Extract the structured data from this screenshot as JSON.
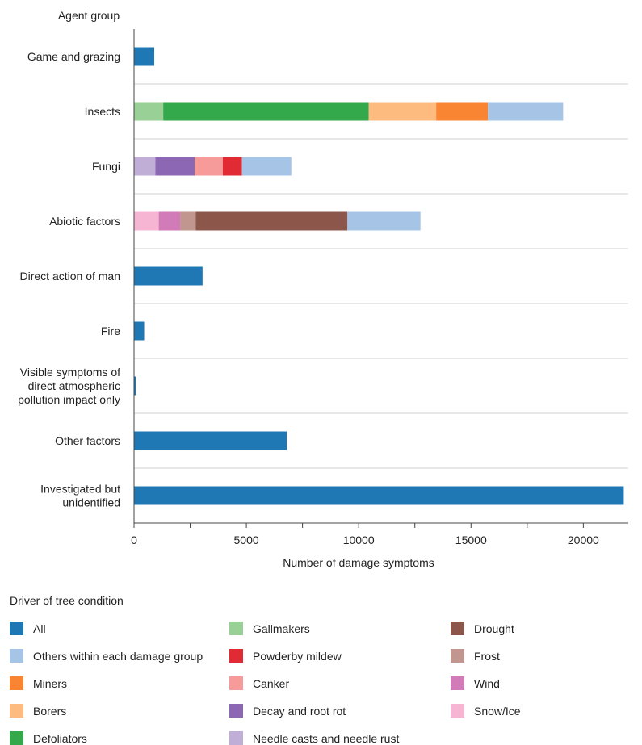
{
  "chart_data": {
    "type": "bar",
    "orientation": "horizontal",
    "stacked": true,
    "ylabel": "Agent group",
    "xlabel": "Number of damage symptoms",
    "xlim": [
      0,
      22000
    ],
    "xticks": [
      0,
      5000,
      10000,
      15000,
      20000
    ],
    "xtick_labels": [
      "0",
      "5000",
      "10000",
      "15000",
      "20000"
    ],
    "grid": "horizontal separators between groups",
    "legend_title": "Driver of tree condition",
    "legend_placement": "bottom",
    "categories": [
      [
        "Game and grazing"
      ],
      [
        "Insects"
      ],
      [
        "Fungi"
      ],
      [
        "Abiotic factors"
      ],
      [
        "Direct action of man"
      ],
      [
        "Fire"
      ],
      [
        "Visible symptoms of",
        "direct atmospheric",
        "pollution impact only"
      ],
      [
        "Other factors"
      ],
      [
        "Investigated but",
        "unidentified"
      ]
    ],
    "series": [
      {
        "name": "All",
        "color": "#1f77b4",
        "values": [
          900,
          0,
          0,
          0,
          3050,
          450,
          80,
          6800,
          21800
        ]
      },
      {
        "name": "Gallmakers",
        "color": "#98d095",
        "values": [
          0,
          1300,
          0,
          0,
          0,
          0,
          0,
          0,
          0
        ]
      },
      {
        "name": "Defoliators",
        "color": "#33a94b",
        "values": [
          0,
          9150,
          0,
          0,
          0,
          0,
          0,
          0,
          0
        ]
      },
      {
        "name": "Borers",
        "color": "#fdbb80",
        "values": [
          0,
          3000,
          0,
          0,
          0,
          0,
          0,
          0,
          0
        ]
      },
      {
        "name": "Miners",
        "color": "#f98533",
        "values": [
          0,
          2300,
          0,
          0,
          0,
          0,
          0,
          0,
          0
        ]
      },
      {
        "name": "Needle casts and needle rust",
        "color": "#c1aed6",
        "values": [
          0,
          0,
          950,
          0,
          0,
          0,
          0,
          0,
          0
        ]
      },
      {
        "name": "Decay and root rot",
        "color": "#8c67b4",
        "values": [
          0,
          0,
          1750,
          0,
          0,
          0,
          0,
          0,
          0
        ]
      },
      {
        "name": "Canker",
        "color": "#f69b9a",
        "values": [
          0,
          0,
          1250,
          0,
          0,
          0,
          0,
          0,
          0
        ]
      },
      {
        "name": "Powderby mildew",
        "color": "#e02b35",
        "values": [
          0,
          0,
          850,
          0,
          0,
          0,
          0,
          0,
          0
        ]
      },
      {
        "name": "Snow/Ice",
        "color": "#f6b5d3",
        "values": [
          0,
          0,
          0,
          1100,
          0,
          0,
          0,
          0,
          0
        ]
      },
      {
        "name": "Wind",
        "color": "#d17bb9",
        "values": [
          0,
          0,
          0,
          950,
          0,
          0,
          0,
          0,
          0
        ]
      },
      {
        "name": "Frost",
        "color": "#c0968e",
        "values": [
          0,
          0,
          0,
          700,
          0,
          0,
          0,
          0,
          0
        ]
      },
      {
        "name": "Drought",
        "color": "#8c564b",
        "values": [
          0,
          0,
          0,
          6750,
          0,
          0,
          0,
          0,
          0
        ]
      },
      {
        "name": "Others within each damage group",
        "color": "#a6c4e6",
        "values": [
          0,
          3350,
          2200,
          3250,
          0,
          0,
          0,
          0,
          0
        ]
      }
    ],
    "legend_columns": [
      [
        "All",
        "Others within each damage group",
        "Miners",
        "Borers",
        "Defoliators"
      ],
      [
        "Gallmakers",
        "Powderby mildew",
        "Canker",
        "Decay and root rot",
        "Needle casts and needle rust"
      ],
      [
        "Drought",
        "Frost",
        "Wind",
        "Snow/Ice"
      ]
    ]
  }
}
